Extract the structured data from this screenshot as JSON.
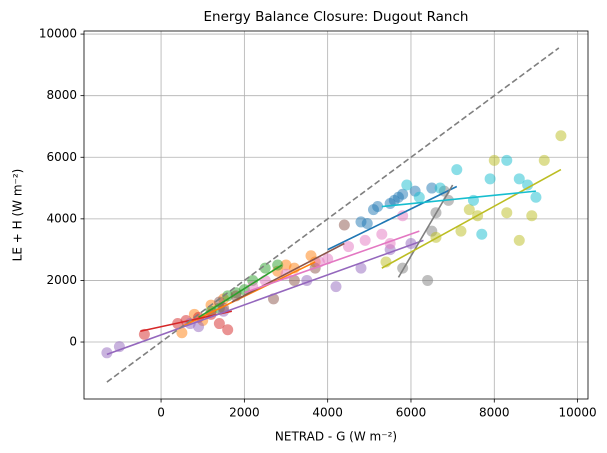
{
  "chart_data": {
    "type": "scatter",
    "title": "Energy Balance Closure: Dugout Ranch",
    "x_label": "NETRAD - G (W m⁻²)",
    "y_label": "LE + H (W m⁻²)",
    "xlim": [
      -1850,
      10250
    ],
    "ylim": [
      -1850,
      10100
    ],
    "xticks": [
      0,
      2000,
      4000,
      6000,
      8000,
      10000
    ],
    "yticks": [
      0,
      2000,
      4000,
      6000,
      8000,
      10000
    ],
    "grid": true,
    "reference_line": {
      "color": "#7f7f7f",
      "x": [
        -1300,
        9550
      ],
      "y": [
        -1300,
        9550
      ]
    },
    "series": [
      {
        "color": "#1f77b4",
        "x": [
          4800,
          5100,
          5200,
          5600,
          5700,
          5800,
          6100,
          6500,
          4950,
          5500
        ],
        "y": [
          3900,
          4300,
          4400,
          4600,
          4700,
          4800,
          4900,
          5000,
          3850,
          4500
        ],
        "fit_x": [
          4000,
          7100
        ],
        "fit_y": [
          3000,
          5050
        ]
      },
      {
        "color": "#ff7f0e",
        "x": [
          500,
          800,
          1200,
          1500,
          2800,
          3000,
          3200,
          3600,
          3700,
          1000
        ],
        "y": [
          300,
          900,
          1200,
          1400,
          2300,
          2500,
          2400,
          2800,
          2600,
          700
        ],
        "fit_x": [
          500,
          3700
        ],
        "fit_y": [
          500,
          2600
        ]
      },
      {
        "color": "#2ca02c",
        "x": [
          1200,
          1600,
          1800,
          2000,
          2200,
          2500,
          2800,
          1400
        ],
        "y": [
          1000,
          1500,
          1600,
          1700,
          2000,
          2400,
          2500,
          1100
        ],
        "fit_x": [
          900,
          2900
        ],
        "fit_y": [
          800,
          2500
        ]
      },
      {
        "color": "#d62728",
        "x": [
          -400,
          400,
          600,
          900,
          1400,
          1600,
          1200
        ],
        "y": [
          250,
          600,
          700,
          800,
          600,
          400,
          900
        ],
        "fit_x": [
          -500,
          1700
        ],
        "fit_y": [
          350,
          1000
        ]
      },
      {
        "color": "#9467bd",
        "x": [
          -1300,
          -1000,
          700,
          900,
          1500,
          3500,
          4200,
          4800,
          5500,
          6000
        ],
        "y": [
          -350,
          -150,
          600,
          500,
          1000,
          2000,
          1800,
          2400,
          3000,
          3200
        ],
        "fit_x": [
          -1300,
          6300
        ],
        "fit_y": [
          -400,
          3300
        ]
      },
      {
        "color": "#8c564b",
        "x": [
          1400,
          1800,
          2700,
          3200,
          3700,
          4400,
          1500
        ],
        "y": [
          1300,
          1500,
          1400,
          2000,
          2400,
          3800,
          1100
        ],
        "fit_x": [
          1700,
          4400
        ],
        "fit_y": [
          1300,
          3200
        ]
      },
      {
        "color": "#e377c2",
        "x": [
          2500,
          3000,
          3800,
          4500,
          4900,
          5300,
          5800,
          5500,
          2200,
          4000
        ],
        "y": [
          2000,
          2200,
          2600,
          3100,
          3300,
          3500,
          4100,
          3200,
          1800,
          2700
        ],
        "fit_x": [
          2000,
          6200
        ],
        "fit_y": [
          1600,
          3600
        ]
      },
      {
        "color": "#7f7f7f",
        "x": [
          5800,
          6400,
          6600,
          6900,
          6500,
          6800
        ],
        "y": [
          2400,
          2000,
          4200,
          4600,
          3600,
          4900
        ],
        "fit_x": [
          5700,
          7000
        ],
        "fit_y": [
          2100,
          5100
        ]
      },
      {
        "color": "#bcbd22",
        "x": [
          5400,
          6600,
          7200,
          7600,
          8300,
          8600,
          8900,
          9200,
          9600,
          8000,
          7400
        ],
        "y": [
          2600,
          3400,
          3600,
          4100,
          4200,
          3300,
          4100,
          5900,
          6700,
          5900,
          4300
        ],
        "fit_x": [
          5300,
          9600
        ],
        "fit_y": [
          2400,
          5600
        ]
      },
      {
        "color": "#17becf",
        "x": [
          6200,
          6700,
          7100,
          7700,
          7900,
          8300,
          8600,
          8800,
          9000,
          7500,
          5900
        ],
        "y": [
          4700,
          5000,
          5600,
          3500,
          5300,
          5900,
          5300,
          5100,
          4700,
          4600,
          5100
        ],
        "fit_x": [
          5300,
          9000
        ],
        "fit_y": [
          4400,
          4900
        ]
      }
    ]
  }
}
